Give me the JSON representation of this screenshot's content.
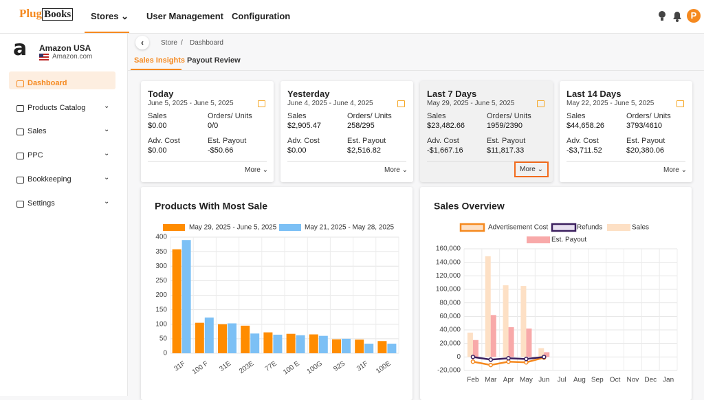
{
  "header": {
    "logo_left": "Plug",
    "logo_right": "Books",
    "nav": [
      "Stores",
      "User Management",
      "Configuration"
    ],
    "avatar": "P"
  },
  "sidebar": {
    "store_name": "Amazon USA",
    "store_domain": "Amazon.com",
    "menu": [
      "Dashboard",
      "Products Catalog",
      "Sales",
      "PPC",
      "Bookkeeping",
      "Settings"
    ]
  },
  "breadcrumb": [
    "Store",
    "Dashboard"
  ],
  "tabs": [
    "Sales Insights",
    "Payout Review"
  ],
  "cards": [
    {
      "title": "Today",
      "date_range": "June 5, 2025 - June 5, 2025",
      "more": "More",
      "metrics": [
        {
          "label": "Sales",
          "value": "$0.00"
        },
        {
          "label": "Orders/ Units",
          "value": "0/0"
        },
        {
          "label": "Adv. Cost",
          "value": "$0.00"
        },
        {
          "label": "Est. Payout",
          "value": "-$50.66"
        }
      ]
    },
    {
      "title": "Yesterday",
      "date_range": "June 4, 2025 - June 4, 2025",
      "more": "More",
      "metrics": [
        {
          "label": "Sales",
          "value": "$2,905.47"
        },
        {
          "label": "Orders/ Units",
          "value": "258/295"
        },
        {
          "label": "Adv. Cost",
          "value": "$0.00"
        },
        {
          "label": "Est. Payout",
          "value": "$2,516.82"
        }
      ]
    },
    {
      "title": "Last 7 Days",
      "date_range": "May 29, 2025 - June 5, 2025",
      "more": "More",
      "metrics": [
        {
          "label": "Sales",
          "value": "$23,482.66"
        },
        {
          "label": "Orders/ Units",
          "value": "1959/2390"
        },
        {
          "label": "Adv. Cost",
          "value": "-$1,667.16"
        },
        {
          "label": "Est. Payout",
          "value": "$11,817.33"
        }
      ]
    },
    {
      "title": "Last 14 Days",
      "date_range": "May 22, 2025 - June 5, 2025",
      "more": "More",
      "metrics": [
        {
          "label": "Sales",
          "value": "$44,658.26"
        },
        {
          "label": "Orders/ Units",
          "value": "3793/4610"
        },
        {
          "label": "Adv. Cost",
          "value": "-$3,711.52"
        },
        {
          "label": "Est. Payout",
          "value": "$20,380.06"
        }
      ]
    }
  ],
  "chart_data": [
    {
      "type": "bar",
      "title": "Products With Most Sale",
      "categories": [
        "31F",
        "100 F",
        "31E",
        "203E",
        "77E",
        "100 E",
        "100G",
        "92S",
        "31F",
        "100E"
      ],
      "series": [
        {
          "name": "May 29, 2025 - June 5, 2025",
          "color": "#ff8c00",
          "values": [
            358,
            105,
            100,
            95,
            72,
            67,
            65,
            48,
            47,
            42
          ]
        },
        {
          "name": "May 21, 2025 - May 28, 2025",
          "color": "#7cc0f5",
          "values": [
            390,
            123,
            103,
            68,
            64,
            62,
            60,
            50,
            33,
            33
          ]
        }
      ],
      "ylim": [
        0,
        400
      ],
      "yticks": [
        0,
        50,
        100,
        150,
        200,
        250,
        300,
        350,
        400
      ],
      "grid": true
    },
    {
      "type": "combo",
      "title": "Sales Overview",
      "categories": [
        "Feb",
        "Mar",
        "Apr",
        "May",
        "Jun",
        "Jul",
        "Aug",
        "Sep",
        "Oct",
        "Nov",
        "Dec",
        "Jan"
      ],
      "series": [
        {
          "name": "Advertisement Cost",
          "kind": "line",
          "color": "#f5891f",
          "values": [
            -7000,
            -12000,
            -7000,
            -8000,
            -1000,
            null,
            null,
            null,
            null,
            null,
            null,
            null
          ]
        },
        {
          "name": "Refunds",
          "kind": "line",
          "color": "#3b1f5e",
          "values": [
            0,
            -4000,
            -2000,
            -3000,
            0,
            null,
            null,
            null,
            null,
            null,
            null,
            null
          ]
        },
        {
          "name": "Sales",
          "kind": "bar",
          "color": "#fde0c5",
          "values": [
            36000,
            149000,
            106000,
            105000,
            13000,
            null,
            null,
            null,
            null,
            null,
            null,
            null
          ]
        },
        {
          "name": "Est. Payout",
          "kind": "bar",
          "color": "#f8a9a9",
          "values": [
            25000,
            62000,
            44000,
            42000,
            7000,
            null,
            null,
            null,
            null,
            null,
            null,
            null
          ]
        }
      ],
      "ylim": [
        -20000,
        160000
      ],
      "yticks": [
        {
          "value": -20000,
          "label": "-20,000"
        },
        0,
        {
          "value": 20000,
          "label": "20,000"
        },
        {
          "value": 40000,
          "label": "40,000"
        },
        {
          "value": 60000,
          "label": "60,000"
        },
        {
          "value": 80000,
          "label": "80,000"
        },
        {
          "value": 100000,
          "label": "100,000"
        },
        {
          "value": 120000,
          "label": "120,000"
        },
        {
          "value": 140000,
          "label": "140,000"
        },
        {
          "value": 160000,
          "label": "160,000"
        }
      ],
      "grid": true
    }
  ]
}
